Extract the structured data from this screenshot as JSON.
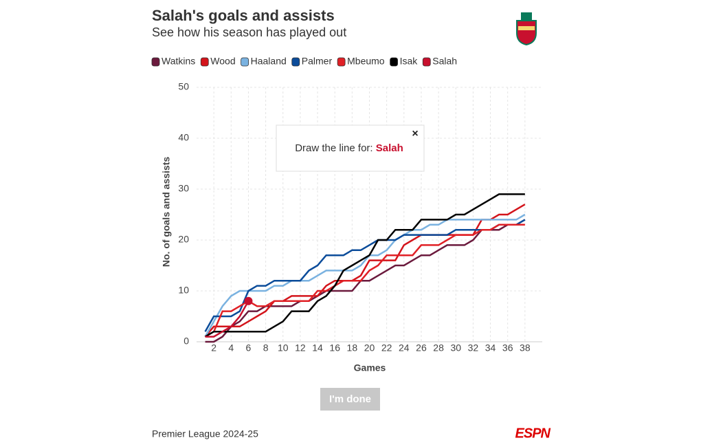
{
  "chart_data": {
    "type": "line",
    "title": "Salah's goals and assists",
    "subtitle": "See how his season has played out",
    "y_label": "No. of goals and assists",
    "x_label": "Games",
    "prompt": "Draw the line for:",
    "prompt_player": "Salah",
    "button": "I'm done",
    "source": "Premier League 2024-25",
    "logo": "ESPN",
    "grid": true,
    "x": [
      1,
      2,
      3,
      4,
      5,
      6,
      7,
      8,
      9,
      10,
      11,
      12,
      13,
      14,
      15,
      16,
      17,
      18,
      19,
      20,
      21,
      22,
      23,
      24,
      25,
      26,
      27,
      28,
      29,
      30,
      31,
      32,
      33,
      34,
      35,
      36,
      37,
      38
    ],
    "xlim": [
      0,
      40
    ],
    "xticks": [
      2,
      4,
      6,
      8,
      10,
      12,
      14,
      16,
      18,
      20,
      22,
      24,
      26,
      28,
      30,
      32,
      34,
      36,
      38
    ],
    "ylim": [
      0,
      50
    ],
    "yticks": [
      0,
      10,
      20,
      30,
      40,
      50
    ],
    "series": [
      {
        "name": "Watkins",
        "color": "#6b1a3d",
        "values": [
          0,
          0,
          1,
          3,
          4,
          6,
          6,
          7,
          7,
          7,
          7,
          8,
          8,
          9,
          10,
          10,
          10,
          10,
          12,
          12,
          13,
          14,
          15,
          15,
          16,
          17,
          17,
          18,
          19,
          19,
          19,
          20,
          22,
          22,
          22,
          23,
          23,
          24
        ]
      },
      {
        "name": "Wood",
        "color": "#d3141b",
        "values": [
          1,
          3,
          3,
          3,
          3,
          4,
          5,
          6,
          8,
          8,
          9,
          9,
          9,
          9,
          11,
          12,
          12,
          12,
          13,
          16,
          16,
          16,
          16,
          19,
          20,
          21,
          21,
          21,
          21,
          21,
          21,
          21,
          24,
          24,
          25,
          25,
          26,
          27
        ]
      },
      {
        "name": "Haaland",
        "color": "#7ab2e0",
        "values": [
          1,
          4,
          7,
          9,
          10,
          10,
          10,
          10,
          11,
          11,
          12,
          12,
          12,
          13,
          14,
          14,
          14,
          14,
          15,
          17,
          17,
          18,
          20,
          21,
          22,
          22,
          23,
          23,
          24,
          24,
          24,
          24,
          24,
          24,
          24,
          24,
          24,
          25
        ]
      },
      {
        "name": "Palmer",
        "color": "#0b4c9a",
        "values": [
          2,
          5,
          5,
          5,
          6,
          10,
          11,
          11,
          12,
          12,
          12,
          12,
          14,
          15,
          17,
          17,
          17,
          18,
          18,
          19,
          20,
          20,
          20,
          21,
          21,
          21,
          21,
          21,
          21,
          22,
          22,
          22,
          22,
          22,
          23,
          23,
          23,
          24
        ]
      },
      {
        "name": "Mbeumo",
        "color": "#e02026",
        "values": [
          1,
          2,
          6,
          6,
          7,
          8,
          7,
          7,
          8,
          8,
          8,
          8,
          8,
          10,
          10,
          11,
          12,
          12,
          12,
          14,
          15,
          17,
          17,
          17,
          17,
          19,
          19,
          19,
          20,
          21,
          21,
          21,
          22,
          22,
          23,
          23,
          23,
          23
        ]
      },
      {
        "name": "Isak",
        "color": "#000000",
        "values": [
          1,
          2,
          2,
          2,
          2,
          2,
          2,
          2,
          3,
          4,
          6,
          6,
          6,
          8,
          9,
          11,
          14,
          15,
          16,
          17,
          20,
          20,
          22,
          22,
          22,
          24,
          24,
          24,
          24,
          25,
          25,
          26,
          27,
          28,
          29,
          29,
          29,
          29
        ]
      },
      {
        "name": "Salah",
        "color": "#c8102e",
        "values": [
          1,
          1,
          2,
          3,
          5,
          8,
          null,
          null,
          null,
          null,
          null,
          null,
          null,
          null,
          null,
          null,
          null,
          null,
          null,
          null,
          null,
          null,
          null,
          null,
          null,
          null,
          null,
          null,
          null,
          null,
          null,
          null,
          null,
          null,
          null,
          null,
          null,
          null
        ]
      }
    ]
  }
}
